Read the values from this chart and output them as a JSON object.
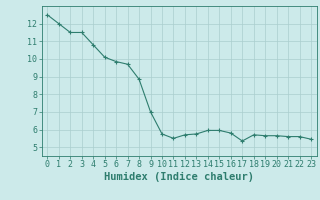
{
  "x": [
    0,
    1,
    2,
    3,
    4,
    5,
    6,
    7,
    8,
    9,
    10,
    11,
    12,
    13,
    14,
    15,
    16,
    17,
    18,
    19,
    20,
    21,
    22,
    23
  ],
  "y": [
    12.5,
    12.0,
    11.5,
    11.5,
    10.8,
    10.1,
    9.85,
    9.7,
    8.85,
    7.0,
    5.75,
    5.5,
    5.7,
    5.75,
    5.95,
    5.95,
    5.8,
    5.35,
    5.7,
    5.65,
    5.65,
    5.6,
    5.6,
    5.45
  ],
  "xlabel": "Humidex (Indice chaleur)",
  "ylim": [
    4.5,
    13.0
  ],
  "xlim": [
    -0.5,
    23.5
  ],
  "yticks": [
    5,
    6,
    7,
    8,
    9,
    10,
    11,
    12
  ],
  "xticks": [
    0,
    1,
    2,
    3,
    4,
    5,
    6,
    7,
    8,
    9,
    10,
    11,
    12,
    13,
    14,
    15,
    16,
    17,
    18,
    19,
    20,
    21,
    22,
    23
  ],
  "line_color": "#2e7d6e",
  "marker_color": "#2e7d6e",
  "bg_color": "#cceaea",
  "grid_color": "#aacece",
  "axis_color": "#2e7d6e",
  "tick_label_color": "#2e7d6e",
  "xlabel_color": "#2e7d6e",
  "tick_fontsize": 6.0,
  "xlabel_fontsize": 7.5
}
